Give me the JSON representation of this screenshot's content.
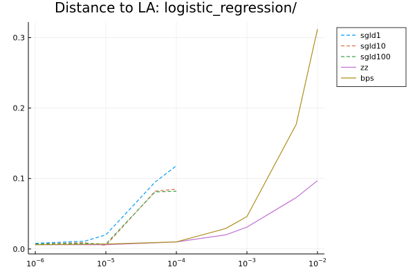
{
  "chart_data": {
    "type": "line",
    "title": "Distance to LA: logistic_regression/",
    "xlabel": "",
    "ylabel": "",
    "x_scale": "log",
    "xlim": [
      1e-06,
      0.01
    ],
    "ylim": [
      0,
      0.32
    ],
    "grid": true,
    "legend_position": "top-right",
    "x_ticks": [
      {
        "value": 1e-06,
        "base": "10",
        "exp": "−6"
      },
      {
        "value": 1e-05,
        "base": "10",
        "exp": "−5"
      },
      {
        "value": 0.0001,
        "base": "10",
        "exp": "−4"
      },
      {
        "value": 0.001,
        "base": "10",
        "exp": "−3"
      },
      {
        "value": 0.01,
        "base": "10",
        "exp": "−2"
      }
    ],
    "y_ticks": [
      {
        "value": 0.0,
        "label": "0.0"
      },
      {
        "value": 0.1,
        "label": "0.1"
      },
      {
        "value": 0.2,
        "label": "0.2"
      },
      {
        "value": 0.3,
        "label": "0.3"
      }
    ],
    "series": [
      {
        "name": "sgld1",
        "color": "#009af9",
        "dash": "dashed",
        "x": [
          1e-06,
          5e-06,
          1e-05,
          5e-05,
          0.0001
        ],
        "y": [
          0.008,
          0.011,
          0.02,
          0.095,
          0.118
        ]
      },
      {
        "name": "sgld10",
        "color": "#e26f46",
        "dash": "dashed",
        "x": [
          1e-06,
          5e-06,
          1e-05,
          5e-05,
          0.0001
        ],
        "y": [
          0.007,
          0.009,
          0.005,
          0.082,
          0.085
        ]
      },
      {
        "name": "sgld100",
        "color": "#3da44d",
        "dash": "dashed",
        "x": [
          1e-06,
          5e-06,
          1e-05,
          5e-05,
          0.0001
        ],
        "y": [
          0.007,
          0.008,
          0.007,
          0.081,
          0.082
        ]
      },
      {
        "name": "zz",
        "color": "#c271d2",
        "dash": "solid",
        "x": [
          1e-06,
          1e-05,
          0.0001,
          0.0005,
          0.001,
          0.005,
          0.01
        ],
        "y": [
          0.006,
          0.006,
          0.01,
          0.02,
          0.031,
          0.073,
          0.097
        ]
      },
      {
        "name": "bps",
        "color": "#ac8d18",
        "dash": "solid",
        "x": [
          1e-06,
          1e-05,
          0.0001,
          0.0005,
          0.001,
          0.005,
          0.01
        ],
        "y": [
          0.006,
          0.007,
          0.01,
          0.029,
          0.046,
          0.177,
          0.312
        ]
      }
    ]
  }
}
